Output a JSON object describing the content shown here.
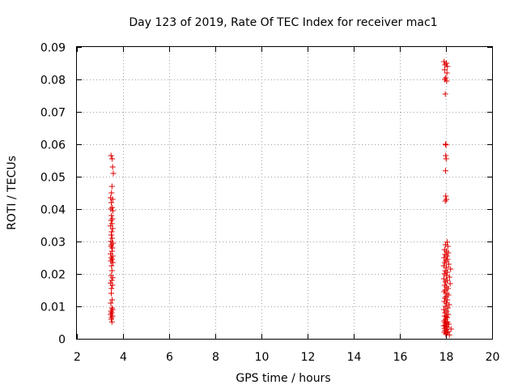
{
  "chart_data": {
    "type": "scatter",
    "title": "Day 123 of 2019, Rate Of TEC Index for receiver mac1",
    "xlabel": "GPS time / hours",
    "ylabel": "ROTI / TECUs",
    "xlim": [
      2,
      20
    ],
    "ylim": [
      0,
      0.09
    ],
    "x_ticks": [
      2,
      4,
      6,
      8,
      10,
      12,
      14,
      16,
      18,
      20
    ],
    "x_tick_labels": [
      "2",
      "4",
      "6",
      "8",
      "10",
      "12",
      "14",
      "16",
      "18",
      "20"
    ],
    "y_ticks": [
      0,
      0.01,
      0.02,
      0.03,
      0.04,
      0.05,
      0.06,
      0.07,
      0.08,
      0.09
    ],
    "y_tick_labels": [
      "0",
      "0.01",
      "0.02",
      "0.03",
      "0.04",
      "0.05",
      "0.06",
      "0.07",
      "0.08",
      "0.09"
    ],
    "grid": true,
    "marker": "plus",
    "color": "#e00000",
    "series": [
      {
        "points": [
          [
            3.48,
            0.0565
          ],
          [
            3.53,
            0.0555
          ],
          [
            3.55,
            0.053
          ],
          [
            3.58,
            0.051
          ],
          [
            3.52,
            0.047
          ],
          [
            3.5,
            0.045
          ],
          [
            3.46,
            0.0435
          ],
          [
            3.55,
            0.043
          ],
          [
            3.49,
            0.042
          ],
          [
            3.53,
            0.0405
          ],
          [
            3.47,
            0.04
          ],
          [
            3.56,
            0.0395
          ],
          [
            3.5,
            0.038
          ],
          [
            3.54,
            0.037
          ],
          [
            3.48,
            0.0365
          ],
          [
            3.52,
            0.0355
          ],
          [
            3.46,
            0.0348
          ],
          [
            3.55,
            0.034
          ],
          [
            3.51,
            0.033
          ],
          [
            3.49,
            0.032
          ],
          [
            3.53,
            0.031
          ],
          [
            3.47,
            0.03
          ],
          [
            3.56,
            0.0295
          ],
          [
            3.5,
            0.029
          ],
          [
            3.48,
            0.0285
          ],
          [
            3.54,
            0.028
          ],
          [
            3.52,
            0.027
          ],
          [
            3.46,
            0.0262
          ],
          [
            3.55,
            0.0255
          ],
          [
            3.49,
            0.025
          ],
          [
            3.53,
            0.0245
          ],
          [
            3.47,
            0.024
          ],
          [
            3.56,
            0.0235
          ],
          [
            3.5,
            0.0225
          ],
          [
            3.52,
            0.021
          ],
          [
            3.48,
            0.0195
          ],
          [
            3.55,
            0.0188
          ],
          [
            3.51,
            0.018
          ],
          [
            3.46,
            0.0172
          ],
          [
            3.54,
            0.0165
          ],
          [
            3.5,
            0.0155
          ],
          [
            3.49,
            0.014
          ],
          [
            3.53,
            0.012
          ],
          [
            3.47,
            0.011
          ],
          [
            3.52,
            0.0095
          ],
          [
            3.55,
            0.009
          ],
          [
            3.48,
            0.0085
          ],
          [
            3.51,
            0.008
          ],
          [
            3.46,
            0.0075
          ],
          [
            3.54,
            0.007
          ],
          [
            3.5,
            0.0065
          ],
          [
            3.49,
            0.006
          ],
          [
            3.52,
            0.0052
          ],
          [
            17.92,
            0.0855
          ],
          [
            18.02,
            0.085
          ],
          [
            17.96,
            0.0845
          ],
          [
            18.06,
            0.084
          ],
          [
            17.94,
            0.083
          ],
          [
            18.04,
            0.082
          ],
          [
            17.99,
            0.0805
          ],
          [
            17.95,
            0.08
          ],
          [
            18.03,
            0.0795
          ],
          [
            17.97,
            0.0755
          ],
          [
            17.98,
            0.06
          ],
          [
            18.0,
            0.0598
          ],
          [
            17.99,
            0.0565
          ],
          [
            18.01,
            0.0555
          ],
          [
            17.98,
            0.0518
          ],
          [
            17.99,
            0.044
          ],
          [
            18.02,
            0.043
          ],
          [
            17.97,
            0.0425
          ],
          [
            18.05,
            0.0298
          ],
          [
            17.98,
            0.029
          ],
          [
            18.08,
            0.0285
          ],
          [
            17.94,
            0.0275
          ],
          [
            18.02,
            0.027
          ],
          [
            18.1,
            0.0265
          ],
          [
            17.96,
            0.026
          ],
          [
            18.04,
            0.0255
          ],
          [
            17.92,
            0.025
          ],
          [
            18.07,
            0.0245
          ],
          [
            18.0,
            0.024
          ],
          [
            17.95,
            0.0235
          ],
          [
            18.12,
            0.023
          ],
          [
            17.9,
            0.0225
          ],
          [
            18.03,
            0.022
          ],
          [
            18.2,
            0.0215
          ],
          [
            17.97,
            0.021
          ],
          [
            18.06,
            0.0205
          ],
          [
            17.93,
            0.02
          ],
          [
            18.01,
            0.0195
          ],
          [
            18.15,
            0.019
          ],
          [
            17.91,
            0.0185
          ],
          [
            18.05,
            0.018
          ],
          [
            17.98,
            0.0175
          ],
          [
            18.18,
            0.017
          ],
          [
            17.94,
            0.0165
          ],
          [
            18.02,
            0.016
          ],
          [
            18.09,
            0.0155
          ],
          [
            17.96,
            0.015
          ],
          [
            17.92,
            0.0145
          ],
          [
            18.04,
            0.014
          ],
          [
            18.11,
            0.0135
          ],
          [
            17.99,
            0.013
          ],
          [
            17.95,
            0.0125
          ],
          [
            18.06,
            0.012
          ],
          [
            17.93,
            0.0115
          ],
          [
            18.02,
            0.011
          ],
          [
            18.14,
            0.0105
          ],
          [
            17.97,
            0.01
          ],
          [
            18.08,
            0.0095
          ],
          [
            17.91,
            0.009
          ],
          [
            18.03,
            0.0085
          ],
          [
            17.96,
            0.008
          ],
          [
            18.1,
            0.0075
          ],
          [
            17.94,
            0.007
          ],
          [
            18.01,
            0.0068
          ],
          [
            18.05,
            0.0065
          ],
          [
            17.98,
            0.006
          ],
          [
            17.92,
            0.0055
          ],
          [
            18.07,
            0.0052
          ],
          [
            17.95,
            0.005
          ],
          [
            18.03,
            0.0048
          ],
          [
            18.12,
            0.0045
          ],
          [
            17.97,
            0.0042
          ],
          [
            17.9,
            0.004
          ],
          [
            18.0,
            0.0038
          ],
          [
            18.06,
            0.0035
          ],
          [
            17.94,
            0.0032
          ],
          [
            18.22,
            0.003
          ],
          [
            18.02,
            0.0028
          ],
          [
            17.96,
            0.0025
          ],
          [
            18.09,
            0.0022
          ],
          [
            17.93,
            0.002
          ],
          [
            18.04,
            0.0018
          ],
          [
            17.99,
            0.0015
          ],
          [
            18.15,
            0.0012
          ]
        ]
      }
    ]
  }
}
